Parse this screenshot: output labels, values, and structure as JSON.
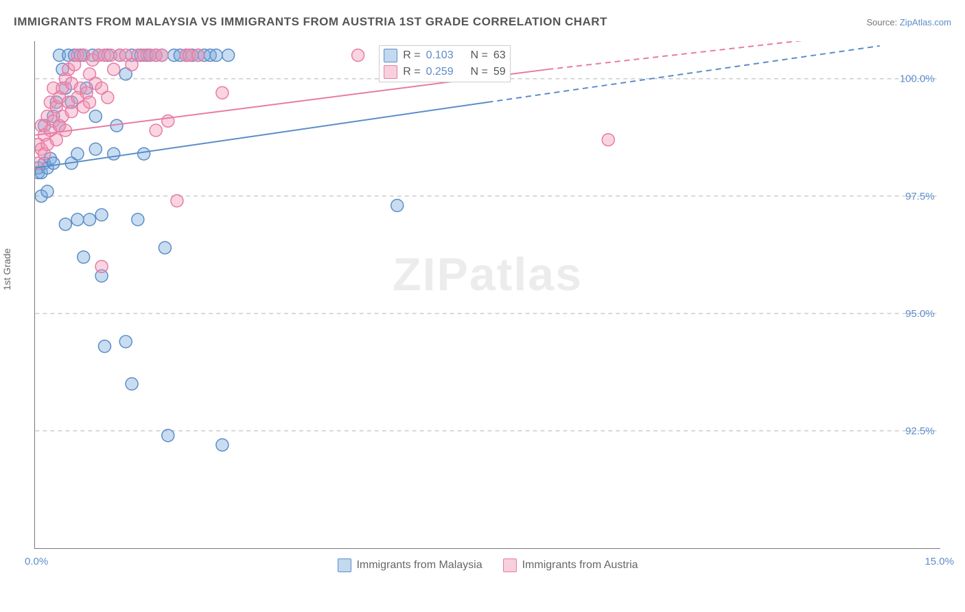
{
  "title": "IMMIGRANTS FROM MALAYSIA VS IMMIGRANTS FROM AUSTRIA 1ST GRADE CORRELATION CHART",
  "source_label": "Source: ",
  "source_link": "ZipAtlas.com",
  "ylabel": "1st Grade",
  "watermark": {
    "part1": "ZIP",
    "part2": "atlas"
  },
  "chart": {
    "type": "scatter",
    "xlim": [
      0.0,
      15.0
    ],
    "ylim": [
      90.0,
      100.8
    ],
    "xticks_pct": [
      0,
      8.33,
      16.66,
      25,
      33.33,
      41.67,
      50,
      100
    ],
    "yticks": [
      {
        "value": 92.5,
        "label": "92.5%"
      },
      {
        "value": 95.0,
        "label": "95.0%"
      },
      {
        "value": 97.5,
        "label": "97.5%"
      },
      {
        "value": 100.0,
        "label": "100.0%"
      }
    ],
    "x_axis_min_label": "0.0%",
    "x_axis_max_label": "15.0%",
    "background_color": "#ffffff",
    "grid_color": "#cccccc",
    "marker_radius": 9,
    "marker_opacity": 0.45,
    "series": [
      {
        "name": "Immigrants from Malaysia",
        "color_fill": "rgba(120,170,220,0.4)",
        "color_stroke": "#5b8cc8",
        "r": "0.103",
        "n": "63",
        "regression": {
          "x1": 0.0,
          "y1": 98.1,
          "x2_solid": 7.5,
          "y2_solid": 99.5,
          "x2_dash": 14.0,
          "y2_dash": 100.7
        },
        "points": [
          [
            0.05,
            98.0
          ],
          [
            0.05,
            98.1
          ],
          [
            0.1,
            98.0
          ],
          [
            0.1,
            97.5
          ],
          [
            0.15,
            98.2
          ],
          [
            0.15,
            99.0
          ],
          [
            0.2,
            98.1
          ],
          [
            0.2,
            97.6
          ],
          [
            0.25,
            98.3
          ],
          [
            0.3,
            98.2
          ],
          [
            0.3,
            99.2
          ],
          [
            0.35,
            99.5
          ],
          [
            0.4,
            100.5
          ],
          [
            0.4,
            99.0
          ],
          [
            0.45,
            100.2
          ],
          [
            0.5,
            99.8
          ],
          [
            0.5,
            96.9
          ],
          [
            0.55,
            100.5
          ],
          [
            0.6,
            98.2
          ],
          [
            0.6,
            99.5
          ],
          [
            0.65,
            100.5
          ],
          [
            0.7,
            98.4
          ],
          [
            0.7,
            97.0
          ],
          [
            0.75,
            100.5
          ],
          [
            0.8,
            100.5
          ],
          [
            0.8,
            96.2
          ],
          [
            0.85,
            99.8
          ],
          [
            0.9,
            97.0
          ],
          [
            0.95,
            100.5
          ],
          [
            1.0,
            99.2
          ],
          [
            1.0,
            98.5
          ],
          [
            1.05,
            100.5
          ],
          [
            1.1,
            95.8
          ],
          [
            1.1,
            97.1
          ],
          [
            1.15,
            94.3
          ],
          [
            1.2,
            100.5
          ],
          [
            1.3,
            98.4
          ],
          [
            1.35,
            99.0
          ],
          [
            1.4,
            100.5
          ],
          [
            1.5,
            100.1
          ],
          [
            1.5,
            94.4
          ],
          [
            1.6,
            100.5
          ],
          [
            1.6,
            93.5
          ],
          [
            1.7,
            97.0
          ],
          [
            1.75,
            100.5
          ],
          [
            1.8,
            98.4
          ],
          [
            1.85,
            100.5
          ],
          [
            1.9,
            100.5
          ],
          [
            2.0,
            100.5
          ],
          [
            2.1,
            100.5
          ],
          [
            2.15,
            96.4
          ],
          [
            2.2,
            92.4
          ],
          [
            2.3,
            100.5
          ],
          [
            2.4,
            100.5
          ],
          [
            2.5,
            100.5
          ],
          [
            2.6,
            100.5
          ],
          [
            2.7,
            100.5
          ],
          [
            2.8,
            100.5
          ],
          [
            2.9,
            100.5
          ],
          [
            3.0,
            100.5
          ],
          [
            3.1,
            92.2
          ],
          [
            3.2,
            100.5
          ],
          [
            6.0,
            97.3
          ]
        ]
      },
      {
        "name": "Immigrants from Austria",
        "color_fill": "rgba(240,150,180,0.4)",
        "color_stroke": "#e87aa4",
        "r": "0.259",
        "n": "59",
        "regression": {
          "x1": 0.0,
          "y1": 98.8,
          "x2_solid": 8.5,
          "y2_solid": 100.2,
          "x2_dash": 14.0,
          "y2_dash": 101.0
        },
        "points": [
          [
            0.05,
            98.2
          ],
          [
            0.05,
            98.6
          ],
          [
            0.1,
            98.5
          ],
          [
            0.1,
            99.0
          ],
          [
            0.15,
            98.4
          ],
          [
            0.15,
            98.8
          ],
          [
            0.2,
            99.2
          ],
          [
            0.2,
            98.6
          ],
          [
            0.25,
            99.5
          ],
          [
            0.25,
            98.9
          ],
          [
            0.3,
            99.1
          ],
          [
            0.3,
            99.8
          ],
          [
            0.35,
            98.7
          ],
          [
            0.35,
            99.4
          ],
          [
            0.4,
            99.6
          ],
          [
            0.4,
            99.0
          ],
          [
            0.45,
            99.8
          ],
          [
            0.45,
            99.2
          ],
          [
            0.5,
            100.0
          ],
          [
            0.5,
            98.9
          ],
          [
            0.55,
            99.5
          ],
          [
            0.55,
            100.2
          ],
          [
            0.6,
            99.3
          ],
          [
            0.6,
            99.9
          ],
          [
            0.65,
            100.3
          ],
          [
            0.7,
            99.6
          ],
          [
            0.7,
            100.5
          ],
          [
            0.75,
            99.8
          ],
          [
            0.8,
            99.4
          ],
          [
            0.8,
            100.5
          ],
          [
            0.85,
            99.7
          ],
          [
            0.9,
            100.1
          ],
          [
            0.9,
            99.5
          ],
          [
            0.95,
            100.4
          ],
          [
            1.0,
            99.9
          ],
          [
            1.05,
            100.5
          ],
          [
            1.1,
            99.8
          ],
          [
            1.1,
            96.0
          ],
          [
            1.15,
            100.5
          ],
          [
            1.2,
            99.6
          ],
          [
            1.25,
            100.5
          ],
          [
            1.3,
            100.2
          ],
          [
            1.4,
            100.5
          ],
          [
            1.5,
            100.5
          ],
          [
            1.6,
            100.3
          ],
          [
            1.7,
            100.5
          ],
          [
            1.8,
            100.5
          ],
          [
            1.9,
            100.5
          ],
          [
            2.0,
            100.5
          ],
          [
            2.0,
            98.9
          ],
          [
            2.1,
            100.5
          ],
          [
            2.2,
            99.1
          ],
          [
            2.35,
            97.4
          ],
          [
            2.5,
            100.5
          ],
          [
            2.55,
            100.5
          ],
          [
            2.7,
            100.5
          ],
          [
            3.1,
            99.7
          ],
          [
            5.35,
            100.5
          ],
          [
            9.5,
            98.7
          ]
        ]
      }
    ]
  },
  "legend_top": {
    "r_prefix": "R = ",
    "n_prefix": "N = "
  },
  "bottom_legend": [
    {
      "label": "Immigrants from Malaysia",
      "swatch": "blue"
    },
    {
      "label": "Immigrants from Austria",
      "swatch": "pink"
    }
  ]
}
